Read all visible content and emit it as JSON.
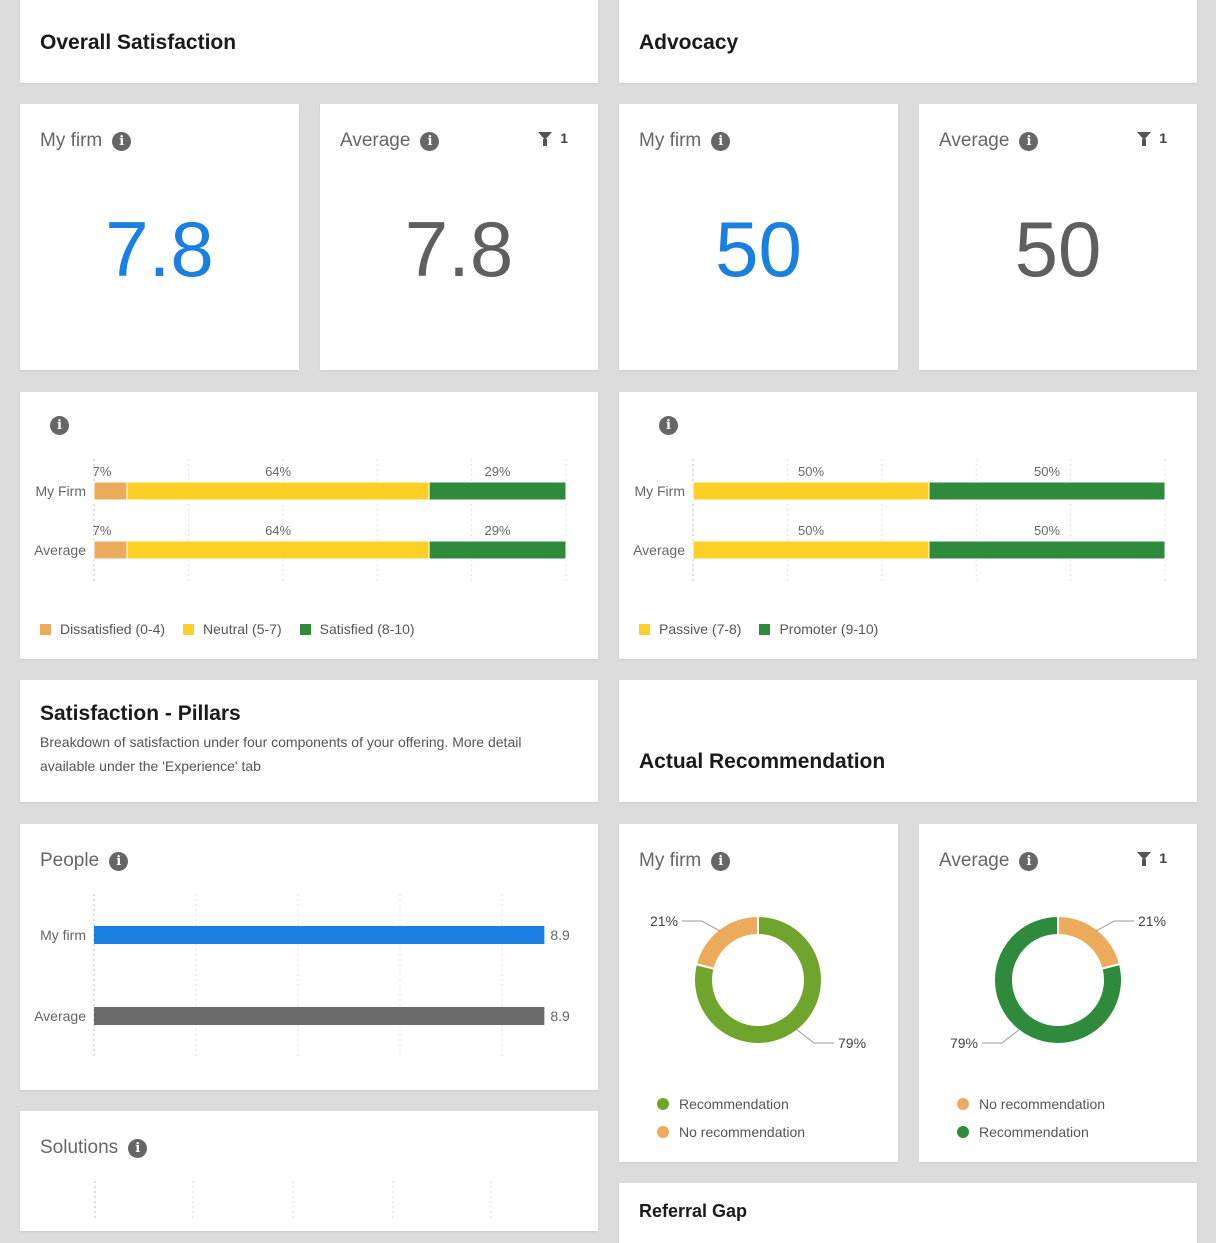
{
  "colors": {
    "blue": "#1a7fe0",
    "gray": "#6b6b6b",
    "orange": "#ecab5a",
    "yellow": "#fdd025",
    "green": "#2f8a3c",
    "light_green": "#6fa52c"
  },
  "satisfaction": {
    "title": "Overall Satisfaction",
    "my_firm": {
      "label": "My firm",
      "value": "7.8"
    },
    "average": {
      "label": "Average",
      "value": "7.8",
      "filter_count": "1"
    },
    "distribution": {
      "rows": [
        {
          "label": "My Firm",
          "segments": [
            {
              "pct": 7,
              "label": "7%"
            },
            {
              "pct": 64,
              "label": "64%"
            },
            {
              "pct": 29,
              "label": "29%"
            }
          ]
        },
        {
          "label": "Average",
          "segments": [
            {
              "pct": 7,
              "label": "7%"
            },
            {
              "pct": 64,
              "label": "64%"
            },
            {
              "pct": 29,
              "label": "29%"
            }
          ]
        }
      ],
      "legend": [
        "Dissatisfied (0-4)",
        "Neutral (5-7)",
        "Satisfied (8-10)"
      ]
    }
  },
  "advocacy": {
    "title": "Advocacy",
    "my_firm": {
      "label": "My firm",
      "value": "50"
    },
    "average": {
      "label": "Average",
      "value": "50",
      "filter_count": "1"
    },
    "distribution": {
      "rows": [
        {
          "label": "My Firm",
          "segments": [
            {
              "pct": 50,
              "label": "50%"
            },
            {
              "pct": 50,
              "label": "50%"
            }
          ]
        },
        {
          "label": "Average",
          "segments": [
            {
              "pct": 50,
              "label": "50%"
            },
            {
              "pct": 50,
              "label": "50%"
            }
          ]
        }
      ],
      "legend": [
        "Passive (7-8)",
        "Promoter (9-10)"
      ]
    }
  },
  "pillars": {
    "title": "Satisfaction - Pillars",
    "description_line1": "Breakdown of satisfaction under four components of your offering. More detail",
    "description_line2": "available under the 'Experience' tab",
    "people": {
      "title": "People",
      "rows": [
        {
          "label": "My firm",
          "value": 8.9,
          "value_label": "8.9"
        },
        {
          "label": "Average",
          "value": 8.9,
          "value_label": "8.9"
        }
      ]
    },
    "solutions": {
      "title": "Solutions"
    }
  },
  "recommendation": {
    "title": "Actual Recommendation",
    "my_firm": {
      "label": "My firm",
      "slices": [
        {
          "name": "Recommendation",
          "pct": 79,
          "label": "79%"
        },
        {
          "name": "No recommendation",
          "pct": 21,
          "label": "21%"
        }
      ],
      "legend": [
        "Recommendation",
        "No recommendation"
      ]
    },
    "average": {
      "label": "Average",
      "filter_count": "1",
      "slices": [
        {
          "name": "No recommendation",
          "pct": 21,
          "label": "21%"
        },
        {
          "name": "Recommendation",
          "pct": 79,
          "label": "79%"
        }
      ],
      "legend": [
        "No recommendation",
        "Recommendation"
      ]
    }
  },
  "referral": {
    "title": "Referral Gap"
  }
}
